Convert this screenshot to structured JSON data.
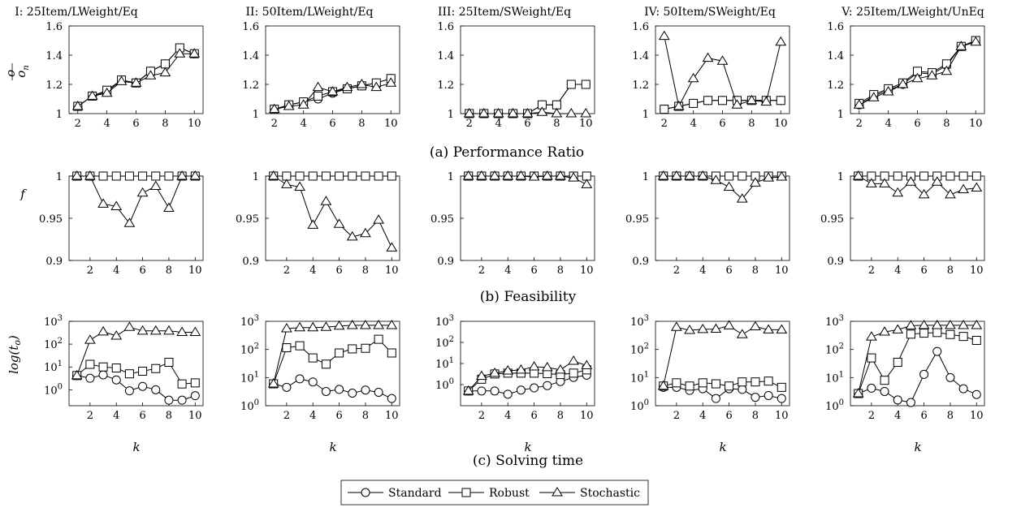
{
  "figure": {
    "column_titles": [
      "I: 25Item/LWeight/Eq",
      "II: 50Item/LWeight/Eq",
      "III: 25Item/SWeight/Eq",
      "IV: 50Item/SWeight/Eq",
      "V: 25Item/LWeight/UnEq"
    ],
    "row_captions": [
      "(a) Performance Ratio",
      "(b) Feasibility",
      "(c) Solving time"
    ],
    "xlabel_bottom": "k",
    "legend": [
      "Standard",
      "Robust",
      "Stochastic"
    ]
  },
  "chart_data": [
    {
      "row": "a",
      "col": 0,
      "type": "line",
      "ylabel": "o / o_n",
      "ylim": [
        1,
        1.6
      ],
      "yticks": [
        1,
        1.2,
        1.4,
        1.6
      ],
      "xlim": [
        1.4,
        10.6
      ],
      "xticks": [
        2,
        4,
        6,
        8,
        10
      ],
      "x": [
        2,
        3,
        4,
        5,
        6,
        7,
        8,
        9,
        10
      ],
      "series": [
        {
          "name": "Standard",
          "values": [
            1.05,
            1.12,
            1.15,
            1.23,
            1.21,
            1.29,
            1.34,
            1.45,
            1.41
          ]
        },
        {
          "name": "Robust",
          "values": [
            1.05,
            1.12,
            1.16,
            1.23,
            1.21,
            1.29,
            1.34,
            1.45,
            1.41
          ]
        },
        {
          "name": "Stochastic",
          "values": [
            1.05,
            1.12,
            1.14,
            1.22,
            1.21,
            1.26,
            1.28,
            1.41,
            1.41
          ]
        }
      ]
    },
    {
      "row": "a",
      "col": 1,
      "type": "line",
      "ylim": [
        1,
        1.6
      ],
      "yticks": [
        1,
        1.2,
        1.4,
        1.6
      ],
      "xlim": [
        1.4,
        10.6
      ],
      "xticks": [
        2,
        4,
        6,
        8,
        10
      ],
      "x": [
        2,
        3,
        4,
        5,
        6,
        7,
        8,
        9,
        10
      ],
      "series": [
        {
          "name": "Standard",
          "values": [
            1.03,
            1.06,
            1.08,
            1.1,
            1.14,
            1.17,
            1.19,
            1.21,
            1.24
          ]
        },
        {
          "name": "Robust",
          "values": [
            1.03,
            1.06,
            1.08,
            1.12,
            1.15,
            1.17,
            1.19,
            1.21,
            1.24
          ]
        },
        {
          "name": "Stochastic",
          "values": [
            1.03,
            1.05,
            1.06,
            1.18,
            1.15,
            1.18,
            1.2,
            1.18,
            1.21
          ]
        }
      ]
    },
    {
      "row": "a",
      "col": 2,
      "type": "line",
      "ylim": [
        1,
        1.6
      ],
      "yticks": [
        1,
        1.2,
        1.4,
        1.6
      ],
      "xlim": [
        1.4,
        10.6
      ],
      "xticks": [
        2,
        4,
        6,
        8,
        10
      ],
      "x": [
        2,
        3,
        4,
        5,
        6,
        7,
        8,
        9,
        10
      ],
      "series": [
        {
          "name": "Standard",
          "values": [
            1.0,
            1.0,
            1.0,
            1.0,
            1.0,
            1.06,
            1.06,
            1.2,
            1.2
          ]
        },
        {
          "name": "Robust",
          "values": [
            1.0,
            1.0,
            1.0,
            1.0,
            1.0,
            1.06,
            1.06,
            1.2,
            1.2
          ]
        },
        {
          "name": "Stochastic",
          "values": [
            1.0,
            1.0,
            1.0,
            1.0,
            1.0,
            1.01,
            1.0,
            1.0,
            1.0
          ]
        }
      ]
    },
    {
      "row": "a",
      "col": 3,
      "type": "line",
      "ylim": [
        1,
        1.6
      ],
      "yticks": [
        1,
        1.2,
        1.4,
        1.6
      ],
      "xlim": [
        1.4,
        10.6
      ],
      "xticks": [
        2,
        4,
        6,
        8,
        10
      ],
      "x": [
        2,
        3,
        4,
        5,
        6,
        7,
        8,
        9,
        10
      ],
      "series": [
        {
          "name": "Standard",
          "values": [
            1.03,
            1.05,
            1.07,
            1.09,
            1.09,
            1.09,
            1.09,
            1.09,
            1.09
          ]
        },
        {
          "name": "Robust",
          "values": [
            1.03,
            1.05,
            1.07,
            1.09,
            1.09,
            1.09,
            1.09,
            1.09,
            1.09
          ]
        },
        {
          "name": "Stochastic",
          "values": [
            1.53,
            1.05,
            1.24,
            1.38,
            1.36,
            1.06,
            1.09,
            1.08,
            1.49
          ]
        }
      ]
    },
    {
      "row": "a",
      "col": 4,
      "type": "line",
      "ylim": [
        1,
        1.6
      ],
      "yticks": [
        1,
        1.2,
        1.4,
        1.6
      ],
      "xlim": [
        1.4,
        10.6
      ],
      "xticks": [
        2,
        4,
        6,
        8,
        10
      ],
      "x": [
        2,
        3,
        4,
        5,
        6,
        7,
        8,
        9,
        10
      ],
      "series": [
        {
          "name": "Standard",
          "values": [
            1.06,
            1.12,
            1.16,
            1.2,
            1.28,
            1.27,
            1.33,
            1.46,
            1.5
          ]
        },
        {
          "name": "Robust",
          "values": [
            1.07,
            1.13,
            1.17,
            1.21,
            1.29,
            1.28,
            1.34,
            1.46,
            1.5
          ]
        },
        {
          "name": "Stochastic",
          "values": [
            1.06,
            1.11,
            1.15,
            1.2,
            1.24,
            1.26,
            1.29,
            1.46,
            1.49
          ]
        }
      ]
    },
    {
      "row": "b",
      "col": 0,
      "type": "line",
      "ylabel": "f",
      "ylim": [
        0.9,
        1.0
      ],
      "yticks": [
        0.9,
        0.95,
        1
      ],
      "xlim": [
        0.4,
        10.6
      ],
      "xticks": [
        2,
        4,
        6,
        8,
        10
      ],
      "x": [
        1,
        2,
        3,
        4,
        5,
        6,
        7,
        8,
        9,
        10
      ],
      "series": [
        {
          "name": "Robust",
          "values": [
            1,
            1,
            1,
            1,
            1,
            1,
            1,
            1,
            1,
            1
          ]
        },
        {
          "name": "Stochastic",
          "values": [
            1,
            1,
            0.967,
            0.964,
            0.944,
            0.98,
            0.988,
            0.962,
            1,
            1
          ]
        }
      ]
    },
    {
      "row": "b",
      "col": 1,
      "type": "line",
      "ylim": [
        0.9,
        1.0
      ],
      "yticks": [
        0.9,
        0.95,
        1
      ],
      "xlim": [
        0.4,
        10.6
      ],
      "xticks": [
        2,
        4,
        6,
        8,
        10
      ],
      "x": [
        1,
        2,
        3,
        4,
        5,
        6,
        7,
        8,
        9,
        10
      ],
      "series": [
        {
          "name": "Robust",
          "values": [
            1,
            1,
            1,
            1,
            1,
            1,
            1,
            1,
            1,
            1
          ]
        },
        {
          "name": "Stochastic",
          "values": [
            1,
            0.99,
            0.987,
            0.942,
            0.97,
            0.943,
            0.928,
            0.932,
            0.948,
            0.915
          ]
        }
      ]
    },
    {
      "row": "b",
      "col": 2,
      "type": "line",
      "ylim": [
        0.9,
        1.0
      ],
      "yticks": [
        0.9,
        0.95,
        1
      ],
      "xlim": [
        0.4,
        10.6
      ],
      "xticks": [
        2,
        4,
        6,
        8,
        10
      ],
      "x": [
        1,
        2,
        3,
        4,
        5,
        6,
        7,
        8,
        9,
        10
      ],
      "series": [
        {
          "name": "Robust",
          "values": [
            1,
            1,
            1,
            1,
            1,
            1,
            1,
            1,
            1,
            1
          ]
        },
        {
          "name": "Stochastic",
          "values": [
            1,
            1,
            1,
            1,
            1,
            0.999,
            1,
            1,
            0.998,
            0.99
          ]
        }
      ]
    },
    {
      "row": "b",
      "col": 3,
      "type": "line",
      "ylim": [
        0.9,
        1.0
      ],
      "yticks": [
        0.9,
        0.95,
        1
      ],
      "xlim": [
        0.4,
        10.6
      ],
      "xticks": [
        2,
        4,
        6,
        8,
        10
      ],
      "x": [
        1,
        2,
        3,
        4,
        5,
        6,
        7,
        8,
        9,
        10
      ],
      "series": [
        {
          "name": "Robust",
          "values": [
            1,
            1,
            1,
            1,
            1,
            1,
            1,
            1,
            1,
            1
          ]
        },
        {
          "name": "Stochastic",
          "values": [
            1,
            1,
            1,
            1,
            0.995,
            0.987,
            0.973,
            0.992,
            0.998,
            0.999
          ]
        }
      ]
    },
    {
      "row": "b",
      "col": 4,
      "type": "line",
      "ylim": [
        0.9,
        1.0
      ],
      "yticks": [
        0.9,
        0.95,
        1
      ],
      "xlim": [
        0.4,
        10.6
      ],
      "xticks": [
        2,
        4,
        6,
        8,
        10
      ],
      "x": [
        1,
        2,
        3,
        4,
        5,
        6,
        7,
        8,
        9,
        10
      ],
      "series": [
        {
          "name": "Robust",
          "values": [
            1,
            1,
            1,
            1,
            1,
            1,
            1,
            1,
            1,
            1
          ]
        },
        {
          "name": "Stochastic",
          "values": [
            1,
            0.991,
            0.991,
            0.98,
            0.993,
            0.978,
            0.993,
            0.978,
            0.984,
            0.986
          ]
        }
      ]
    },
    {
      "row": "c",
      "col": 0,
      "type": "line",
      "ylabel": "log(t_o)",
      "yscale": "log",
      "ylim": [
        0.2,
        1000
      ],
      "yticks": [
        1,
        10,
        100,
        1000
      ],
      "xlim": [
        0.4,
        10.6
      ],
      "xticks": [
        2,
        4,
        6,
        8,
        10
      ],
      "x": [
        1,
        2,
        3,
        4,
        5,
        6,
        7,
        8,
        9,
        10
      ],
      "series": [
        {
          "name": "Standard",
          "values": [
            4.2,
            3.2,
            4.5,
            2.7,
            0.9,
            1.4,
            1.0,
            0.35,
            0.35,
            0.55
          ]
        },
        {
          "name": "Robust",
          "values": [
            4.2,
            13,
            10,
            9,
            5,
            6.5,
            8.5,
            16,
            1.8,
            2
          ]
        },
        {
          "name": "Stochastic",
          "values": [
            4.2,
            150,
            350,
            230,
            550,
            380,
            380,
            380,
            330,
            330
          ]
        }
      ]
    },
    {
      "row": "c",
      "col": 1,
      "type": "line",
      "yscale": "log",
      "ylim": [
        1,
        1000
      ],
      "yticks": [
        1,
        10,
        100,
        1000
      ],
      "xlim": [
        0.4,
        10.6
      ],
      "xticks": [
        2,
        4,
        6,
        8,
        10
      ],
      "x": [
        1,
        2,
        3,
        4,
        5,
        6,
        7,
        8,
        9,
        10
      ],
      "series": [
        {
          "name": "Standard",
          "values": [
            6,
            4.5,
            9,
            7,
            3.2,
            3.8,
            2.8,
            3.6,
            3,
            1.8
          ]
        },
        {
          "name": "Robust",
          "values": [
            6,
            115,
            135,
            50,
            30,
            75,
            105,
            110,
            230,
            75
          ]
        },
        {
          "name": "Stochastic",
          "values": [
            6,
            550,
            600,
            600,
            620,
            680,
            720,
            720,
            720,
            720
          ]
        }
      ]
    },
    {
      "row": "c",
      "col": 2,
      "type": "line",
      "yscale": "log",
      "ylim": [
        0.1,
        1000
      ],
      "yticks": [
        1,
        10,
        100,
        1000
      ],
      "xlim": [
        0.4,
        10.6
      ],
      "xticks": [
        2,
        4,
        6,
        8,
        10
      ],
      "x": [
        1,
        2,
        3,
        4,
        5,
        6,
        7,
        8,
        9,
        10
      ],
      "series": [
        {
          "name": "Standard",
          "values": [
            0.5,
            0.5,
            0.5,
            0.35,
            0.55,
            0.7,
            0.9,
            1.4,
            2.2,
            2.8
          ]
        },
        {
          "name": "Robust",
          "values": [
            0.5,
            1.8,
            3.2,
            3.5,
            3.5,
            3.5,
            3.3,
            3,
            3.5,
            5
          ]
        },
        {
          "name": "Stochastic",
          "values": [
            0.5,
            2.5,
            3.5,
            4.5,
            5,
            7,
            6.5,
            5,
            13,
            8
          ]
        }
      ]
    },
    {
      "row": "c",
      "col": 3,
      "type": "line",
      "yscale": "log",
      "ylim": [
        1,
        1000
      ],
      "yticks": [
        1,
        10,
        100,
        1000
      ],
      "xlim": [
        0.4,
        10.6
      ],
      "xticks": [
        2,
        4,
        6,
        8,
        10
      ],
      "x": [
        1,
        2,
        3,
        4,
        5,
        6,
        7,
        8,
        9,
        10
      ],
      "series": [
        {
          "name": "Standard",
          "values": [
            4.5,
            4.5,
            3.5,
            4,
            1.8,
            4,
            3.8,
            2,
            2.3,
            1.8
          ]
        },
        {
          "name": "Robust",
          "values": [
            5,
            6.5,
            5,
            6.5,
            6,
            5,
            7,
            7,
            7.5,
            4.5
          ]
        },
        {
          "name": "Stochastic",
          "values": [
            5,
            620,
            480,
            520,
            530,
            700,
            340,
            650,
            500,
            500
          ]
        }
      ]
    },
    {
      "row": "c",
      "col": 4,
      "type": "line",
      "yscale": "log",
      "ylim": [
        1,
        1000
      ],
      "yticks": [
        1,
        10,
        100,
        1000
      ],
      "xlim": [
        0.4,
        10.6
      ],
      "xticks": [
        2,
        4,
        6,
        8,
        10
      ],
      "x": [
        1,
        2,
        3,
        4,
        5,
        6,
        7,
        8,
        9,
        10
      ],
      "series": [
        {
          "name": "Standard",
          "values": [
            2.7,
            4.2,
            3.2,
            1.6,
            1.3,
            13,
            85,
            10,
            4,
            2.5
          ]
        },
        {
          "name": "Robust",
          "values": [
            2.7,
            50,
            8,
            35,
            350,
            380,
            400,
            340,
            290,
            210
          ]
        },
        {
          "name": "Stochastic",
          "values": [
            2.7,
            280,
            420,
            500,
            700,
            720,
            720,
            720,
            720,
            720
          ]
        }
      ]
    }
  ]
}
